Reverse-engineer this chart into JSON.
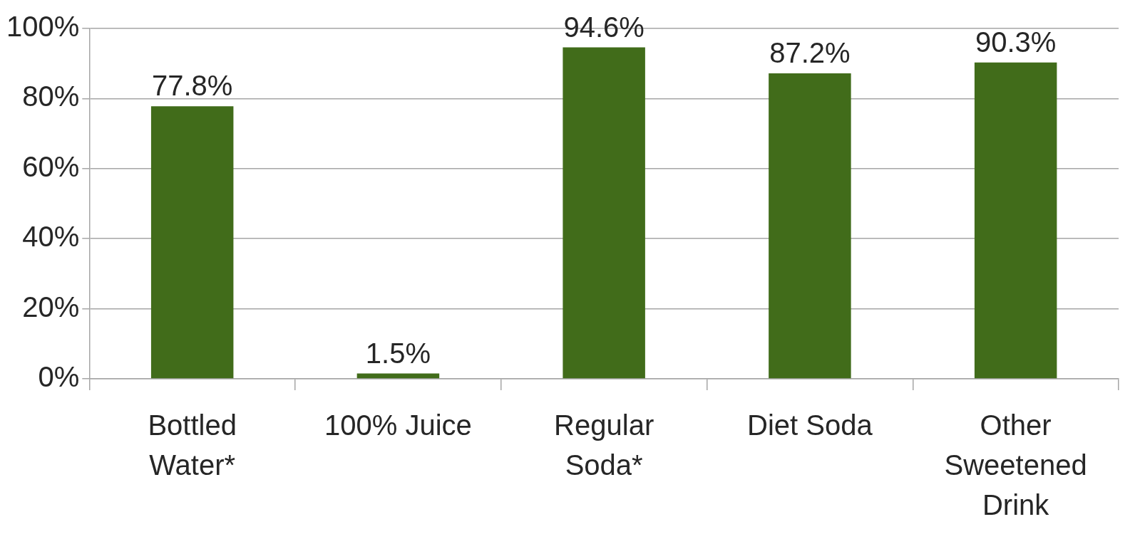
{
  "chart_data": {
    "type": "bar",
    "categories": [
      "Bottled Water*",
      "100% Juice",
      "Regular Soda*",
      "Diet Soda",
      "Other Sweetened Drink"
    ],
    "values": [
      77.8,
      1.5,
      94.6,
      87.2,
      90.3
    ],
    "value_labels": [
      "77.8%",
      "1.5%",
      "94.6%",
      "87.2%",
      "90.3%"
    ],
    "color": "#416c1a",
    "ylim": [
      0,
      100
    ],
    "yticks": [
      {
        "value": 0,
        "label": "0%"
      },
      {
        "value": 20,
        "label": "20%"
      },
      {
        "value": 40,
        "label": "40%"
      },
      {
        "value": 60,
        "label": "60%"
      },
      {
        "value": 80,
        "label": "80%"
      },
      {
        "value": 100,
        "label": "100%"
      }
    ],
    "grid": "y",
    "legend": false
  }
}
